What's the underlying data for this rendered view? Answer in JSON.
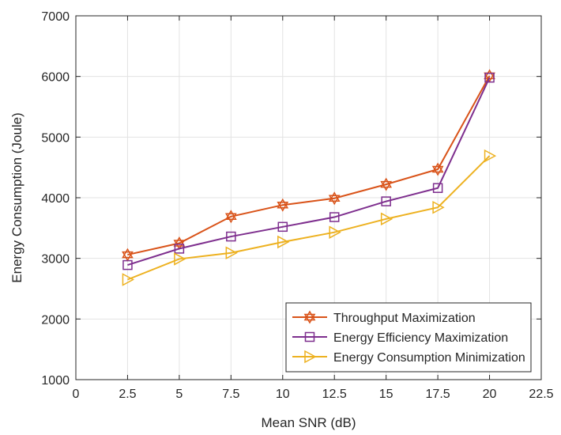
{
  "chart_data": {
    "type": "line",
    "xlabel": "Mean SNR (dB)",
    "ylabel": "Energy Consumption (Joule)",
    "xlim": [
      0,
      22.5
    ],
    "ylim": [
      1000,
      7000
    ],
    "xticks": [
      "0",
      "2.5",
      "5",
      "7.5",
      "10",
      "12.5",
      "15",
      "17.5",
      "20",
      "22.5"
    ],
    "yticks": [
      "1000",
      "2000",
      "3000",
      "4000",
      "5000",
      "6000",
      "7000"
    ],
    "grid": true,
    "legend_position": "bottom-right",
    "x": [
      2.5,
      5,
      7.5,
      10,
      12.5,
      15,
      17.5,
      20
    ],
    "series": [
      {
        "name": "Throughput Maximization",
        "marker": "hexagram",
        "color": "#D95319",
        "values": [
          3060,
          3250,
          3690,
          3880,
          3990,
          4220,
          4470,
          6010
        ]
      },
      {
        "name": "Energy Efficiency Maximization",
        "marker": "square",
        "color": "#7E2F8E",
        "values": [
          2890,
          3160,
          3360,
          3520,
          3680,
          3940,
          4160,
          5980
        ]
      },
      {
        "name": "Energy Consumption Minimization",
        "marker": "triangle-right",
        "color": "#EDB120",
        "values": [
          2650,
          2990,
          3090,
          3270,
          3430,
          3650,
          3840,
          4690
        ]
      }
    ]
  }
}
